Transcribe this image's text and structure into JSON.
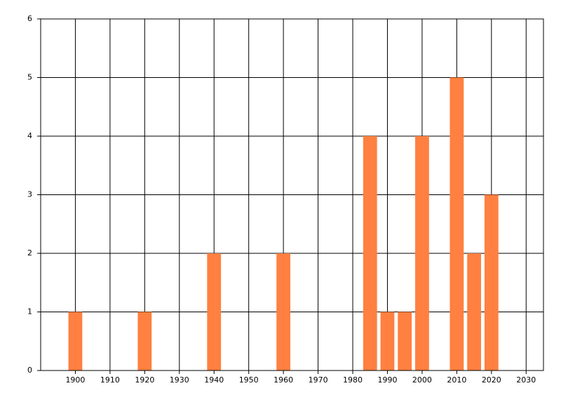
{
  "chart_data": {
    "type": "bar",
    "x": [
      1900,
      1920,
      1940,
      1960,
      1985,
      1990,
      1995,
      2000,
      2010,
      2015,
      2020
    ],
    "values": [
      1,
      1,
      2,
      2,
      4,
      1,
      1,
      4,
      5,
      2,
      3
    ],
    "color": "#ff8040",
    "xlim": [
      1890,
      2035
    ],
    "xticks": [
      1900,
      1910,
      1920,
      1930,
      1940,
      1950,
      1960,
      1970,
      1980,
      1990,
      2000,
      2010,
      2020,
      2030
    ],
    "ylim": [
      0,
      6
    ],
    "yticks": [
      0,
      1,
      2,
      3,
      4,
      5,
      6
    ],
    "grid": true
  }
}
